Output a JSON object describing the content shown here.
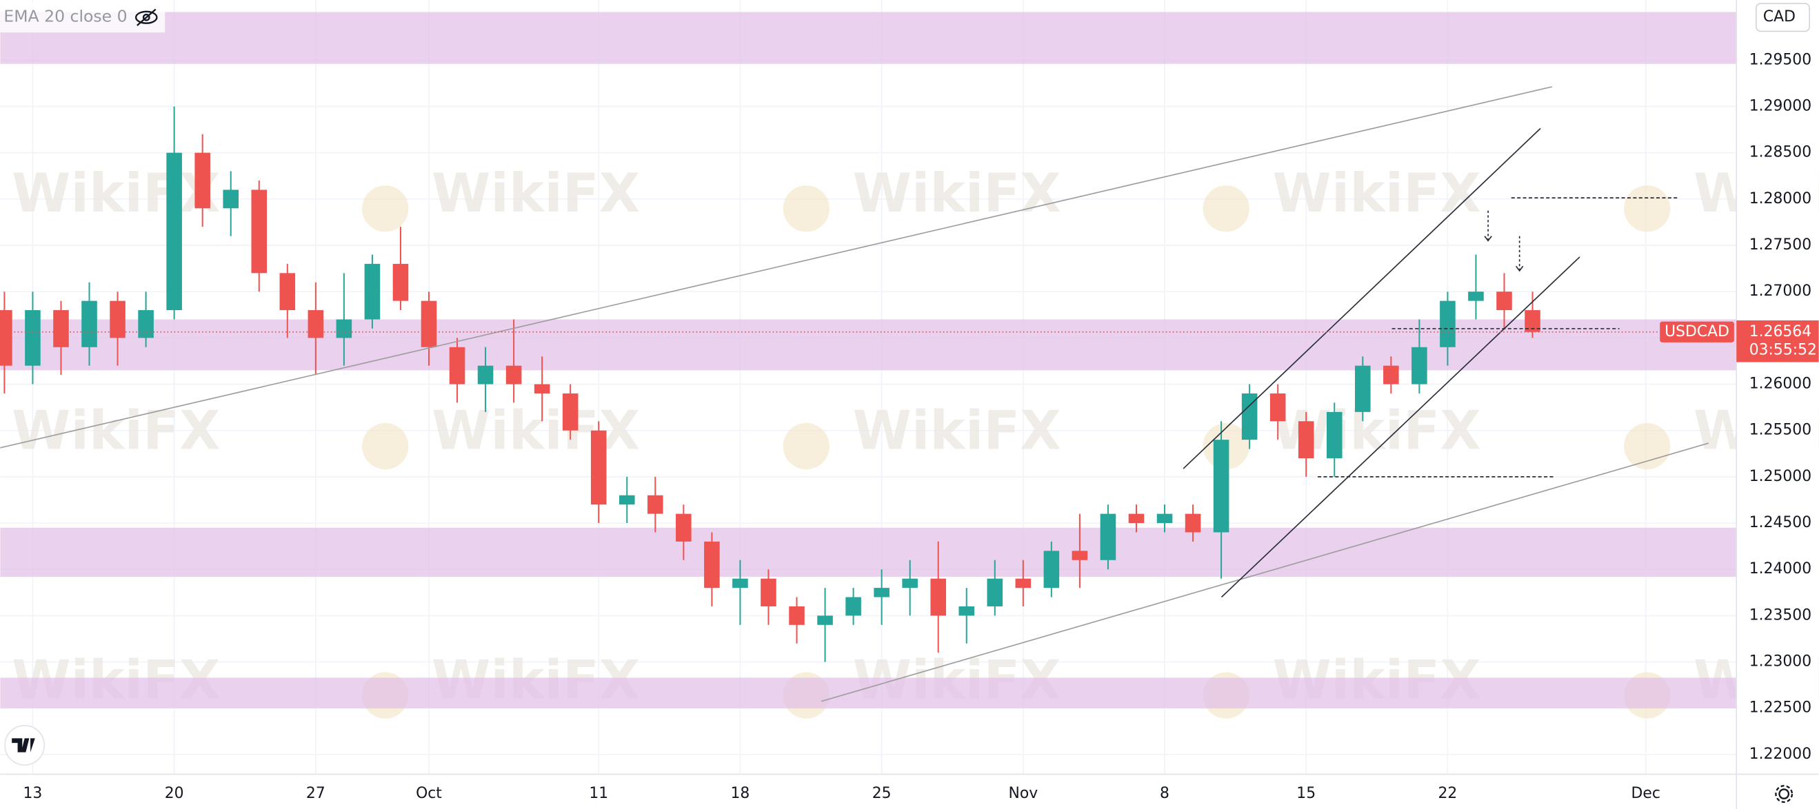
{
  "chart_data": {
    "type": "candlestick",
    "symbol": "USDCAD",
    "indicator": "EMA 20 close 0",
    "currency": "CAD",
    "countdown": "03:55:52",
    "last_price": 1.26564,
    "watermark": "WikiFX",
    "up_color": "#26a69a",
    "down_color": "#ef5350",
    "x": [
      0,
      1,
      2,
      3,
      4,
      5,
      6,
      7,
      8,
      9,
      10,
      11,
      12,
      13,
      14,
      15,
      16,
      17,
      18,
      19,
      20,
      21,
      22,
      23,
      24,
      25,
      26,
      27,
      28,
      29,
      30,
      31,
      32,
      33,
      34,
      35,
      36,
      37,
      38,
      39,
      40,
      41,
      42,
      43,
      44,
      45,
      46,
      47,
      48,
      49,
      50,
      51,
      52,
      53,
      54
    ],
    "open": [
      1.268,
      1.262,
      1.268,
      1.264,
      1.269,
      1.265,
      1.268,
      1.285,
      1.279,
      1.281,
      1.272,
      1.268,
      1.265,
      1.267,
      1.273,
      1.269,
      1.264,
      1.26,
      1.262,
      1.26,
      1.259,
      1.255,
      1.247,
      1.248,
      1.246,
      1.243,
      1.238,
      1.239,
      1.236,
      1.234,
      1.235,
      1.237,
      1.238,
      1.239,
      1.235,
      1.236,
      1.239,
      1.238,
      1.242,
      1.241,
      1.246,
      1.245,
      1.246,
      1.244,
      1.254,
      1.259,
      1.256,
      1.252,
      1.257,
      1.262,
      1.26,
      1.264,
      1.269,
      1.27,
      1.268
    ],
    "high": [
      1.27,
      1.27,
      1.269,
      1.271,
      1.27,
      1.27,
      1.29,
      1.287,
      1.283,
      1.282,
      1.273,
      1.271,
      1.272,
      1.274,
      1.277,
      1.27,
      1.265,
      1.264,
      1.267,
      1.263,
      1.26,
      1.256,
      1.25,
      1.25,
      1.247,
      1.244,
      1.241,
      1.24,
      1.237,
      1.238,
      1.238,
      1.24,
      1.241,
      1.243,
      1.238,
      1.241,
      1.241,
      1.243,
      1.246,
      1.247,
      1.247,
      1.247,
      1.247,
      1.256,
      1.26,
      1.26,
      1.257,
      1.258,
      1.263,
      1.263,
      1.267,
      1.27,
      1.274,
      1.272,
      1.27
    ],
    "low": [
      1.259,
      1.26,
      1.261,
      1.262,
      1.262,
      1.264,
      1.267,
      1.277,
      1.276,
      1.27,
      1.265,
      1.261,
      1.262,
      1.266,
      1.268,
      1.262,
      1.258,
      1.257,
      1.258,
      1.256,
      1.254,
      1.245,
      1.245,
      1.244,
      1.241,
      1.236,
      1.234,
      1.234,
      1.232,
      1.23,
      1.234,
      1.234,
      1.235,
      1.231,
      1.232,
      1.235,
      1.236,
      1.237,
      1.238,
      1.24,
      1.244,
      1.244,
      1.243,
      1.239,
      1.253,
      1.254,
      1.25,
      1.25,
      1.256,
      1.259,
      1.259,
      1.262,
      1.267,
      1.266,
      1.265
    ],
    "close": [
      1.262,
      1.268,
      1.264,
      1.269,
      1.265,
      1.268,
      1.285,
      1.279,
      1.281,
      1.272,
      1.268,
      1.265,
      1.267,
      1.273,
      1.269,
      1.264,
      1.26,
      1.262,
      1.26,
      1.259,
      1.255,
      1.247,
      1.248,
      1.246,
      1.243,
      1.238,
      1.239,
      1.236,
      1.234,
      1.235,
      1.237,
      1.238,
      1.239,
      1.235,
      1.236,
      1.239,
      1.238,
      1.242,
      1.241,
      1.246,
      1.245,
      1.246,
      1.244,
      1.254,
      1.259,
      1.256,
      1.252,
      1.257,
      1.262,
      1.26,
      1.264,
      1.269,
      1.27,
      1.268,
      1.26564
    ],
    "xlim": [
      -0.1475,
      61.205
    ],
    "ylim": [
      1.21787,
      1.3015
    ],
    "xticks": [
      {
        "value": 1,
        "label": "13"
      },
      {
        "value": 6,
        "label": "20"
      },
      {
        "value": 11,
        "label": "27"
      },
      {
        "value": 15,
        "label": "Oct"
      },
      {
        "value": 21,
        "label": "11"
      },
      {
        "value": 26,
        "label": "18"
      },
      {
        "value": 31,
        "label": "25"
      },
      {
        "value": 36,
        "label": "Nov"
      },
      {
        "value": 41,
        "label": "8"
      },
      {
        "value": 46,
        "label": "15"
      },
      {
        "value": 51,
        "label": "22"
      },
      {
        "value": 58,
        "label": "Dec"
      }
    ],
    "yticks": [
      {
        "value": 1.22,
        "label": "1.22000"
      },
      {
        "value": 1.225,
        "label": "1.22500"
      },
      {
        "value": 1.23,
        "label": "1.23000"
      },
      {
        "value": 1.235,
        "label": "1.23500"
      },
      {
        "value": 1.24,
        "label": "1.24000"
      },
      {
        "value": 1.245,
        "label": "1.24500"
      },
      {
        "value": 1.25,
        "label": "1.25000"
      },
      {
        "value": 1.255,
        "label": "1.25500"
      },
      {
        "value": 1.26,
        "label": "1.26000"
      },
      {
        "value": 1.265,
        "label": "1.26500"
      },
      {
        "value": 1.27,
        "label": "1.27000"
      },
      {
        "value": 1.275,
        "label": "1.27500"
      },
      {
        "value": 1.28,
        "label": "1.28000"
      },
      {
        "value": 1.285,
        "label": "1.28500"
      },
      {
        "value": 1.29,
        "label": "1.29000"
      },
      {
        "value": 1.295,
        "label": "1.29500"
      }
    ],
    "grid": true,
    "zones": [
      [
        1.2946,
        1.3002
      ],
      [
        1.2615,
        1.267
      ],
      [
        1.2392,
        1.2445
      ],
      [
        1.225,
        1.2283
      ]
    ],
    "trend_lines": [
      {
        "x": [
          -0.15,
          54.69
        ],
        "y": [
          1.25313,
          1.29213
        ]
      },
      {
        "x": [
          28.87,
          60.22
        ],
        "y": [
          1.22575,
          1.25363
        ]
      },
      {
        "x": [
          41.66,
          54.28
        ],
        "y": [
          1.25088,
          1.28763
        ]
      },
      {
        "x": [
          43.01,
          55.67
        ],
        "y": [
          1.237,
          1.27375
        ]
      }
    ],
    "levels": [
      {
        "x": [
          53.25,
          59.19
        ],
        "y": 1.28013
      },
      {
        "x": [
          49.03,
          57.07
        ],
        "y": 1.266
      },
      {
        "x": [
          46.41,
          54.77
        ],
        "y": 1.25
      }
    ],
    "arrows": [
      {
        "x": 52.43,
        "y": [
          1.27875,
          1.2755
        ]
      },
      {
        "x": 53.54,
        "y": [
          1.276,
          1.27225
        ]
      }
    ]
  }
}
